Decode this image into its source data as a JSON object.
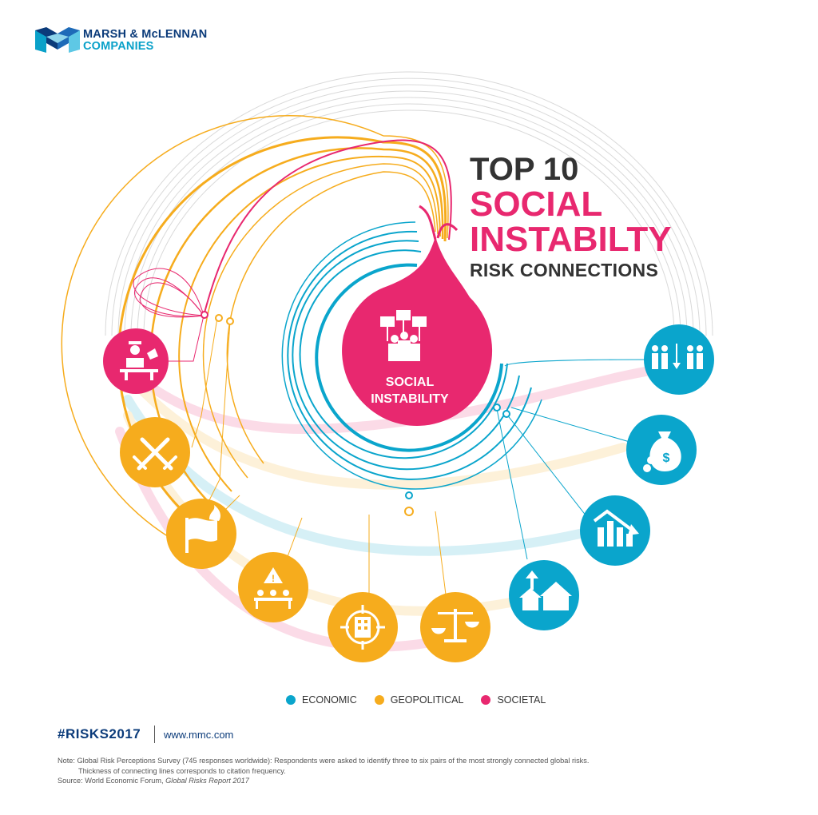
{
  "brand": {
    "line1": "MARSH & McLENNAN",
    "line2": "COMPANIES"
  },
  "title": {
    "line1": "TOP 10",
    "line2": "SOCIAL",
    "line3": "INSTABILTY",
    "line4": "RISK CONNECTIONS"
  },
  "center": {
    "label_line1": "SOCIAL",
    "label_line2": "INSTABILITY"
  },
  "nodes": [
    {
      "category": "societal",
      "icon": "interrogation-icon"
    },
    {
      "category": "geopolitical",
      "icon": "crossed-swords-icon"
    },
    {
      "category": "geopolitical",
      "icon": "burning-flag-icon"
    },
    {
      "category": "geopolitical",
      "icon": "meeting-warning-icon"
    },
    {
      "category": "geopolitical",
      "icon": "building-target-icon"
    },
    {
      "category": "geopolitical",
      "icon": "scales-justice-icon"
    },
    {
      "category": "economic",
      "icon": "house-arrow-icon"
    },
    {
      "category": "economic",
      "icon": "falling-bar-chart-icon"
    },
    {
      "category": "economic",
      "icon": "money-bag-icon"
    },
    {
      "category": "economic",
      "icon": "people-divide-icon"
    }
  ],
  "legend": [
    {
      "label": "ECONOMIC",
      "color": "#0aa5cc"
    },
    {
      "label": "GEOPOLITICAL",
      "color": "#f6ac1d"
    },
    {
      "label": "SOCIETAL",
      "color": "#e8286f"
    }
  ],
  "colors": {
    "economic": "#0aa5cc",
    "geopolitical": "#f6ac1d",
    "societal": "#e8286f",
    "dark": "#333333",
    "brand_navy": "#0b3b7a"
  },
  "footer": {
    "hashtag": "#RISKS2017",
    "website": "www.mmc.com",
    "note_line1": "Note: Global Risk Perceptions Survey (745 responses worldwide): Respondents were asked to identify three to six pairs of the most strongly connected global risks.",
    "note_line2": "Thickness of connecting lines corresponds to citation frequency.",
    "source_prefix": "Source: World Economic Forum, ",
    "source_title": "Global Risks Report 2017"
  }
}
